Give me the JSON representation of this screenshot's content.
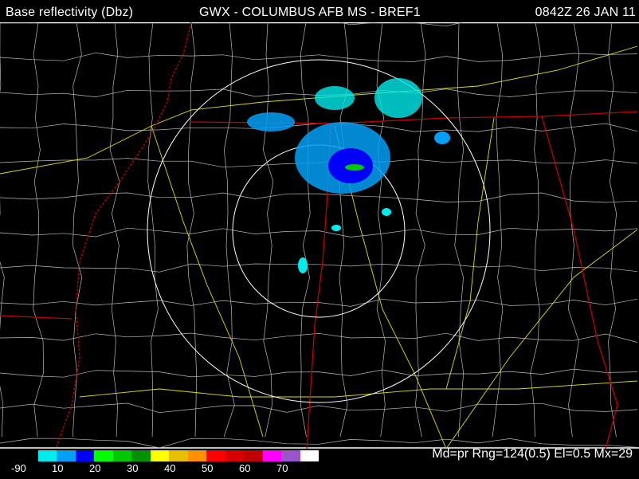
{
  "header": {
    "product": "Base reflectivity (Dbz)",
    "station": "GWX - COLUMBUS AFB MS - BREF1",
    "time": "0842Z 26 JAN 11"
  },
  "legend": {
    "colors": [
      "#000000",
      "#00ecec",
      "#01a0f6",
      "#0000f6",
      "#00ff00",
      "#00c800",
      "#009000",
      "#ffff00",
      "#e7c000",
      "#ff9000",
      "#ff0000",
      "#d60000",
      "#c00000",
      "#ff00ff",
      "#9955c9",
      "#ffffff"
    ],
    "labels": [
      "-90",
      "10",
      "20",
      "30",
      "40",
      "50",
      "60",
      "70"
    ]
  },
  "status": "Md=pr Rng=124(0.5) El=0.5 Mx=29",
  "map_colors": {
    "state_lines": "#c00000",
    "county_lines": "#c8c8c8",
    "highways": "#e0e000",
    "range_rings": "#ffffff",
    "river": "#d00000"
  }
}
